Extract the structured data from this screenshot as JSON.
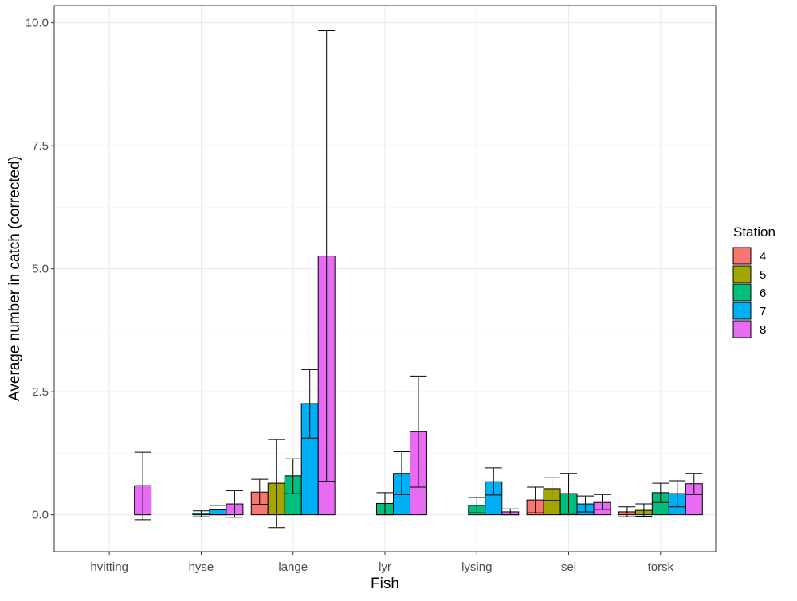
{
  "chart_data": {
    "type": "bar",
    "xlabel": "Fish",
    "ylabel": "Average number in catch (corrected)",
    "ylim": [
      -0.75,
      10.35
    ],
    "yticks": [
      "0.0",
      "2.5",
      "5.0",
      "7.5",
      "10.0"
    ],
    "ytick_values": [
      0,
      2.5,
      5,
      7.5,
      10
    ],
    "grid": true,
    "legend": {
      "title": "Station",
      "placement": "right"
    },
    "categories": [
      "hvitting",
      "hyse",
      "lange",
      "lyr",
      "lysing",
      "sei",
      "torsk"
    ],
    "series": [
      {
        "name": "4",
        "color": "#F8766D",
        "values": [
          0,
          0,
          0.46,
          0,
          0,
          0.3,
          0.06
        ],
        "err_low": [
          0,
          0,
          0.21,
          0,
          0,
          0.04,
          -0.04
        ],
        "err_high": [
          0,
          0,
          0.72,
          0,
          0,
          0.56,
          0.16
        ]
      },
      {
        "name": "5",
        "color": "#A3A500",
        "values": [
          0,
          0,
          0.64,
          0,
          0,
          0.53,
          0.09
        ],
        "err_low": [
          0,
          0,
          -0.26,
          0,
          0,
          0.29,
          -0.03
        ],
        "err_high": [
          0,
          0,
          1.53,
          0,
          0,
          0.75,
          0.22
        ]
      },
      {
        "name": "6",
        "color": "#00BF7D",
        "values": [
          0,
          0.03,
          0.79,
          0.23,
          0.19,
          0.43,
          0.45
        ],
        "err_low": [
          0,
          -0.04,
          0.43,
          0.0,
          0.04,
          0.03,
          0.25
        ],
        "err_high": [
          0,
          0.08,
          1.14,
          0.45,
          0.35,
          0.84,
          0.64
        ]
      },
      {
        "name": "7",
        "color": "#00B0F6",
        "values": [
          0,
          0.1,
          2.26,
          0.84,
          0.67,
          0.22,
          0.43
        ],
        "err_low": [
          0,
          0.0,
          1.56,
          0.41,
          0.4,
          0.06,
          0.16
        ],
        "err_high": [
          0,
          0.19,
          2.95,
          1.28,
          0.95,
          0.38,
          0.69
        ]
      },
      {
        "name": "8",
        "color": "#E76BF3",
        "values": [
          0.59,
          0.22,
          5.26,
          1.69,
          0.06,
          0.25,
          0.63
        ],
        "err_low": [
          -0.1,
          -0.05,
          0.68,
          0.56,
          0.0,
          0.11,
          0.41
        ],
        "err_high": [
          1.27,
          0.49,
          9.84,
          2.82,
          0.12,
          0.41,
          0.84
        ]
      }
    ]
  }
}
